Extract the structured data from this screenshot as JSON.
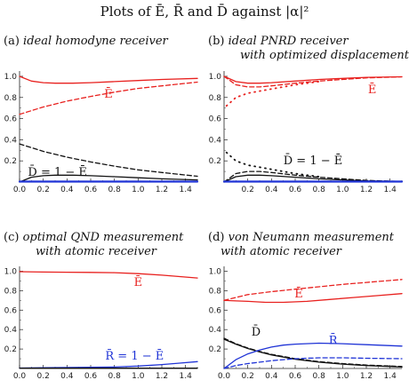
{
  "figure_title": "Plots of Ē, R̄ and D̄ against |α|²",
  "colors": {
    "red": "#e8201e",
    "black": "#111111",
    "blue": "#1f33d6"
  },
  "chart_data": [
    {
      "id": "a",
      "type": "line",
      "title": "(a) ideal homodyne receiver",
      "title_line2": "",
      "xlim": [
        0,
        1.5
      ],
      "ylim": [
        0,
        1.05
      ],
      "x_ticks": [
        "0.0",
        "0.2",
        "0.4",
        "0.6",
        "0.8",
        "1.0",
        "1.2",
        "1.4"
      ],
      "y_ticks": [
        "0.2",
        "0.4",
        "0.6",
        "0.8",
        "1.0"
      ],
      "annotations": [
        {
          "text": "Ē",
          "color": "red",
          "x": 0.75,
          "y": 0.8
        },
        {
          "text": "D̄ = 1 − Ē",
          "color": "black",
          "x": 0.32,
          "y": 0.06
        }
      ],
      "series": [
        {
          "color": "red",
          "style": "solid",
          "x": [
            0,
            0.1,
            0.2,
            0.3,
            0.45,
            0.6,
            0.8,
            1.0,
            1.2,
            1.5
          ],
          "y": [
            1.0,
            0.955,
            0.94,
            0.935,
            0.935,
            0.94,
            0.95,
            0.96,
            0.97,
            0.98
          ]
        },
        {
          "color": "red",
          "style": "dashed",
          "x": [
            0,
            0.2,
            0.4,
            0.6,
            0.8,
            1.0,
            1.2,
            1.5
          ],
          "y": [
            0.64,
            0.71,
            0.765,
            0.81,
            0.85,
            0.885,
            0.91,
            0.945
          ]
        },
        {
          "color": "black",
          "style": "dashed",
          "x": [
            0,
            0.2,
            0.4,
            0.6,
            0.8,
            1.0,
            1.2,
            1.5
          ],
          "y": [
            0.36,
            0.29,
            0.235,
            0.19,
            0.15,
            0.115,
            0.09,
            0.055
          ]
        },
        {
          "color": "black",
          "style": "solid",
          "x": [
            0,
            0.1,
            0.2,
            0.3,
            0.45,
            0.6,
            0.8,
            1.0,
            1.2,
            1.5
          ],
          "y": [
            0.0,
            0.045,
            0.06,
            0.065,
            0.065,
            0.06,
            0.05,
            0.04,
            0.03,
            0.02
          ]
        },
        {
          "color": "blue",
          "style": "solid",
          "x": [
            0,
            1.5
          ],
          "y": [
            0.004,
            0.004
          ]
        }
      ]
    },
    {
      "id": "b",
      "type": "line",
      "title": "(b) ideal PNRD receiver",
      "title_line2": "with optimized displacement",
      "xlim": [
        0,
        1.5
      ],
      "ylim": [
        0,
        1.05
      ],
      "x_ticks": [
        "0.2",
        "0.4",
        "0.6",
        "0.8",
        "1.0",
        "1.2",
        "1.4"
      ],
      "y_ticks": [
        "0.2",
        "0.4",
        "0.6",
        "0.8",
        "1.0"
      ],
      "annotations": [
        {
          "text": "Ē",
          "color": "red",
          "x": 1.25,
          "y": 0.84
        },
        {
          "text": "D̄ = 1 − Ē",
          "color": "black",
          "x": 0.75,
          "y": 0.17
        }
      ],
      "series": [
        {
          "color": "red",
          "style": "solid",
          "x": [
            0,
            0.1,
            0.2,
            0.3,
            0.4,
            0.6,
            0.8,
            1.0,
            1.2,
            1.5
          ],
          "y": [
            1.0,
            0.95,
            0.935,
            0.935,
            0.94,
            0.955,
            0.97,
            0.98,
            0.99,
            0.995
          ]
        },
        {
          "color": "red",
          "style": "dashed",
          "x": [
            0,
            0.1,
            0.2,
            0.3,
            0.4,
            0.6,
            0.8,
            1.0,
            1.2,
            1.5
          ],
          "y": [
            1.0,
            0.92,
            0.9,
            0.9,
            0.91,
            0.935,
            0.955,
            0.97,
            0.985,
            0.995
          ]
        },
        {
          "color": "red",
          "style": "dotted",
          "x": [
            0.02,
            0.1,
            0.2,
            0.3,
            0.4,
            0.5,
            0.6,
            0.8
          ],
          "y": [
            0.72,
            0.8,
            0.84,
            0.86,
            0.88,
            0.9,
            0.92,
            0.95
          ]
        },
        {
          "color": "black",
          "style": "dashed",
          "x": [
            0,
            0.1,
            0.2,
            0.3,
            0.4,
            0.6,
            0.8,
            1.0,
            1.2,
            1.5
          ],
          "y": [
            0.0,
            0.08,
            0.1,
            0.1,
            0.09,
            0.065,
            0.045,
            0.03,
            0.015,
            0.005
          ]
        },
        {
          "color": "black",
          "style": "solid",
          "x": [
            0,
            0.1,
            0.2,
            0.3,
            0.4,
            0.6,
            0.8,
            1.0,
            1.2,
            1.5
          ],
          "y": [
            0.0,
            0.05,
            0.065,
            0.065,
            0.06,
            0.045,
            0.03,
            0.02,
            0.01,
            0.005
          ]
        },
        {
          "color": "black",
          "style": "dotted",
          "x": [
            0.02,
            0.1,
            0.2,
            0.3,
            0.4,
            0.5,
            0.6,
            0.8
          ],
          "y": [
            0.28,
            0.2,
            0.16,
            0.14,
            0.12,
            0.1,
            0.08,
            0.05
          ]
        },
        {
          "color": "blue",
          "style": "solid",
          "x": [
            0,
            1.5
          ],
          "y": [
            0.004,
            0.004
          ]
        }
      ]
    },
    {
      "id": "c",
      "type": "line",
      "title": "(c) optimal QND measurement",
      "title_line2": "with atomic receiver",
      "xlim": [
        0,
        1.5
      ],
      "ylim": [
        0,
        1.05
      ],
      "x_ticks": [
        "0.0",
        "0.2",
        "0.4",
        "0.6",
        "0.8",
        "1.0",
        "1.2",
        "1.4"
      ],
      "y_ticks": [
        "0.2",
        "0.4",
        "0.6",
        "0.8",
        "1.0"
      ],
      "annotations": [
        {
          "text": "Ē",
          "color": "red",
          "x": 1.0,
          "y": 0.85
        },
        {
          "text": "R̄ = 1 − Ē",
          "color": "blue",
          "x": 0.97,
          "y": 0.09
        }
      ],
      "series": [
        {
          "color": "red",
          "style": "solid",
          "x": [
            0,
            0.2,
            0.4,
            0.6,
            0.8,
            1.0,
            1.2,
            1.35,
            1.5
          ],
          "y": [
            0.995,
            0.992,
            0.99,
            0.988,
            0.985,
            0.975,
            0.96,
            0.945,
            0.93
          ]
        },
        {
          "color": "blue",
          "style": "solid",
          "x": [
            0,
            0.2,
            0.4,
            0.6,
            0.8,
            1.0,
            1.2,
            1.35,
            1.5
          ],
          "y": [
            0.005,
            0.008,
            0.01,
            0.012,
            0.015,
            0.025,
            0.04,
            0.055,
            0.07
          ]
        },
        {
          "color": "black",
          "style": "solid",
          "x": [
            0,
            1.5
          ],
          "y": [
            0.003,
            0.003
          ]
        }
      ]
    },
    {
      "id": "d",
      "type": "line",
      "title": "(d) von Neumann measurement",
      "title_line2": "with atomic receiver",
      "xlim": [
        0,
        1.5
      ],
      "ylim": [
        0,
        1.05
      ],
      "x_ticks": [
        "0.0",
        "0.2",
        "0.4",
        "0.6",
        "0.8",
        "1.0",
        "1.2",
        "1.4"
      ],
      "y_ticks": [
        "0.2",
        "0.4",
        "0.6",
        "0.8",
        "1.0"
      ],
      "annotations": [
        {
          "text": "Ē",
          "color": "red",
          "x": 0.63,
          "y": 0.73
        },
        {
          "text": "D̄",
          "color": "black",
          "x": 0.27,
          "y": 0.34
        },
        {
          "text": "R̄",
          "color": "blue",
          "x": 0.92,
          "y": 0.25
        }
      ],
      "series": [
        {
          "color": "red",
          "style": "dashed",
          "x": [
            0,
            0.2,
            0.4,
            0.6,
            0.8,
            1.0,
            1.2,
            1.5
          ],
          "y": [
            0.7,
            0.76,
            0.79,
            0.815,
            0.84,
            0.865,
            0.885,
            0.915
          ]
        },
        {
          "color": "red",
          "style": "solid",
          "x": [
            0,
            0.1,
            0.2,
            0.35,
            0.5,
            0.7,
            0.9,
            1.1,
            1.3,
            1.5
          ],
          "y": [
            0.7,
            0.695,
            0.69,
            0.68,
            0.68,
            0.69,
            0.71,
            0.73,
            0.75,
            0.77
          ]
        },
        {
          "color": "black",
          "style": "solid",
          "x": [
            0,
            0.1,
            0.2,
            0.3,
            0.4,
            0.6,
            0.8,
            1.0,
            1.2,
            1.5
          ],
          "y": [
            0.3,
            0.25,
            0.205,
            0.17,
            0.14,
            0.095,
            0.065,
            0.045,
            0.03,
            0.015
          ]
        },
        {
          "color": "black",
          "style": "dashed",
          "x": [
            0,
            0.1,
            0.2,
            0.3,
            0.4,
            0.6,
            0.8,
            1.0,
            1.2,
            1.5
          ],
          "y": [
            0.31,
            0.255,
            0.21,
            0.175,
            0.145,
            0.1,
            0.07,
            0.05,
            0.035,
            0.02
          ]
        },
        {
          "color": "blue",
          "style": "solid",
          "x": [
            0,
            0.1,
            0.2,
            0.3,
            0.4,
            0.5,
            0.6,
            0.8,
            1.0,
            1.2,
            1.5
          ],
          "y": [
            0.0,
            0.09,
            0.15,
            0.19,
            0.22,
            0.24,
            0.25,
            0.26,
            0.255,
            0.245,
            0.23
          ]
        },
        {
          "color": "blue",
          "style": "dashed",
          "x": [
            0,
            0.1,
            0.2,
            0.3,
            0.4,
            0.5,
            0.6,
            0.8,
            1.0,
            1.2,
            1.5
          ],
          "y": [
            0.0,
            0.03,
            0.05,
            0.065,
            0.08,
            0.09,
            0.1,
            0.11,
            0.11,
            0.105,
            0.1
          ]
        }
      ]
    }
  ]
}
